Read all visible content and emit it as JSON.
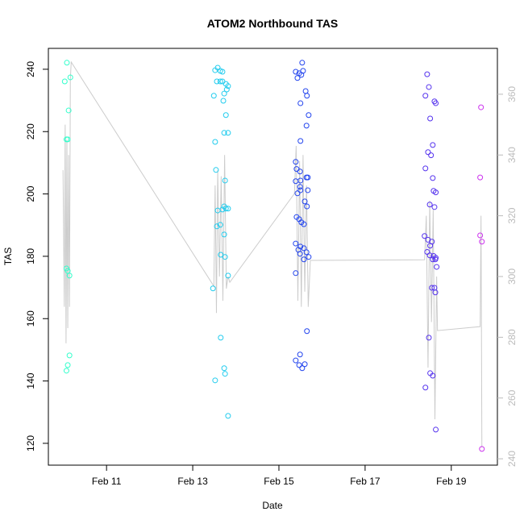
{
  "chart_data": {
    "type": "scatter",
    "title": "ATOM2 Northbound TAS",
    "xlabel": "Date",
    "ylabel": "TAS",
    "xlim": [
      9.65,
      20.07
    ],
    "ylim": [
      113,
      246.7
    ],
    "y2lim": [
      237.9,
      375.1
    ],
    "xticks": [
      {
        "value": 11,
        "label": "Feb 11"
      },
      {
        "value": 13,
        "label": "Feb 13"
      },
      {
        "value": 15,
        "label": "Feb 15"
      },
      {
        "value": 17,
        "label": "Feb 17"
      },
      {
        "value": 19,
        "label": "Feb 19"
      }
    ],
    "yticks": [
      120,
      140,
      160,
      180,
      200,
      220,
      240
    ],
    "y2ticks": [
      240,
      260,
      280,
      300,
      320,
      340,
      360
    ],
    "series": [
      {
        "type": "line",
        "axis": "y2",
        "color": "#cccccc",
        "x": [
          9.99,
          10.02,
          10.04,
          10.06,
          10.08,
          10.1,
          10.12,
          10.14,
          10.16,
          10.18,
          13.49,
          13.52,
          13.55,
          13.58,
          13.62,
          13.66,
          13.7,
          13.74,
          13.78,
          13.82,
          13.86,
          15.36,
          15.4,
          15.44,
          15.48,
          15.52,
          15.56,
          15.6,
          15.64,
          15.68,
          15.73,
          18.38,
          18.42,
          18.46,
          18.5,
          18.54,
          18.58,
          18.62,
          18.66,
          18.68,
          19.67,
          19.69,
          19.71
        ],
        "values": [
          335,
          290,
          350,
          278,
          345,
          283,
          340,
          290,
          365,
          370.6,
          296.8,
          330,
          288,
          335,
          300,
          333,
          292,
          340,
          296,
          300,
          298.1,
          327.3,
          343,
          292,
          338,
          290,
          340,
          295,
          330,
          290,
          305.3,
          305.5,
          320,
          270,
          325,
          285,
          322,
          253,
          300,
          282.2,
          283.5,
          320,
          243.7
        ]
      },
      {
        "color": "#33ffcc",
        "x": [
          10.08,
          10.03,
          10.16,
          10.12,
          10.07,
          10.1,
          10.07,
          10.1,
          10.14,
          10.14,
          10.1,
          10.07
        ],
        "values": [
          242.1,
          236.1,
          237.4,
          226.8,
          217.5,
          217.5,
          176.1,
          175.3,
          173.8,
          148.2,
          145.1,
          143.3
        ]
      },
      {
        "color": "#22ccee",
        "x": [
          13.52,
          13.58,
          13.64,
          13.69,
          13.56,
          13.64,
          13.69,
          13.77,
          13.82,
          13.79,
          13.73,
          13.49,
          13.71,
          13.77,
          13.82,
          13.73,
          13.52,
          13.54,
          13.75,
          13.58,
          13.69,
          13.77,
          13.82,
          13.73,
          13.56,
          13.64,
          13.65,
          13.75,
          13.73,
          13.82,
          13.47,
          13.65,
          13.73,
          13.75,
          13.52,
          13.82
        ],
        "values": [
          239.7,
          240.5,
          239.5,
          239.2,
          236.1,
          236.1,
          236.1,
          235.3,
          234.6,
          233.5,
          232.2,
          231.5,
          229.9,
          225.3,
          219.6,
          219.6,
          216.7,
          207.7,
          204.3,
          194.7,
          195.0,
          195.3,
          195.3,
          196.0,
          189.6,
          190.1,
          180.5,
          179.8,
          187.0,
          173.8,
          169.7,
          153.9,
          144.1,
          142.3,
          140.2,
          128.8
        ]
      },
      {
        "color": "#2244ee",
        "x": [
          15.54,
          15.39,
          15.47,
          15.56,
          15.52,
          15.43,
          15.62,
          15.65,
          15.5,
          15.69,
          15.64,
          15.5,
          15.39,
          15.41,
          15.49,
          15.5,
          15.67,
          15.64,
          15.39,
          15.49,
          15.43,
          15.5,
          15.67,
          15.6,
          15.65,
          15.41,
          15.47,
          15.52,
          15.58,
          15.39,
          15.5,
          15.45,
          15.58,
          15.64,
          15.69,
          15.49,
          15.58,
          15.39,
          15.65,
          15.49,
          15.39,
          15.47,
          15.54,
          15.6
        ],
        "values": [
          242.1,
          239.2,
          238.7,
          239.5,
          238.2,
          237.2,
          233.0,
          231.5,
          229.1,
          225.3,
          221.9,
          217.0,
          210.3,
          208.0,
          207.2,
          204.3,
          205.3,
          205.3,
          204.1,
          202.3,
          200.2,
          201.2,
          201.2,
          197.6,
          196.0,
          192.6,
          191.9,
          190.9,
          190.3,
          184.1,
          183.1,
          182.1,
          182.6,
          181.3,
          179.8,
          180.8,
          179.0,
          174.6,
          156.0,
          148.5,
          146.6,
          145.1,
          144.1,
          145.4
        ]
      },
      {
        "color": "#5533ee",
        "x": [
          18.44,
          18.48,
          18.4,
          18.61,
          18.64,
          18.51,
          18.57,
          18.46,
          18.53,
          18.4,
          18.57,
          18.59,
          18.64,
          18.5,
          18.61,
          18.38,
          18.46,
          18.51,
          18.55,
          18.44,
          18.5,
          18.59,
          18.63,
          18.64,
          18.57,
          18.55,
          18.61,
          18.63,
          18.66,
          18.48,
          18.51,
          18.57,
          18.4,
          18.64
        ],
        "values": [
          238.4,
          234.3,
          231.5,
          229.7,
          229.1,
          224.2,
          215.7,
          213.4,
          212.4,
          208.2,
          205.1,
          201.0,
          200.5,
          196.6,
          195.8,
          186.5,
          185.3,
          183.4,
          184.7,
          181.4,
          180.3,
          180.1,
          179.0,
          179.5,
          179.0,
          169.9,
          169.9,
          168.4,
          176.6,
          153.9,
          142.5,
          141.7,
          137.9,
          124.4
        ]
      },
      {
        "color": "#cc33ee",
        "x": [
          19.69,
          19.67,
          19.67,
          19.71,
          19.71
        ],
        "values": [
          227.8,
          205.3,
          186.7,
          184.7,
          118.2
        ]
      }
    ]
  }
}
